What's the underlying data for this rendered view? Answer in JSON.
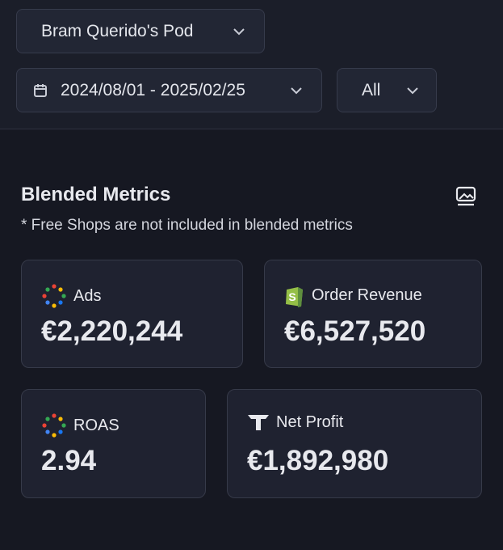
{
  "filters": {
    "pod": "Bram Querido's Pod",
    "date_range": "2024/08/01 - 2025/02/25",
    "scope": "All"
  },
  "section": {
    "title": "Blended Metrics",
    "note": "* Free Shops are not included in blended metrics"
  },
  "metrics": [
    {
      "label": "Ads",
      "value": "€2,220,244"
    },
    {
      "label": "Order Revenue",
      "value": "€6,527,520"
    },
    {
      "label": "ROAS",
      "value": "2.94"
    },
    {
      "label": "Net Profit",
      "value": "€1,892,980"
    }
  ]
}
